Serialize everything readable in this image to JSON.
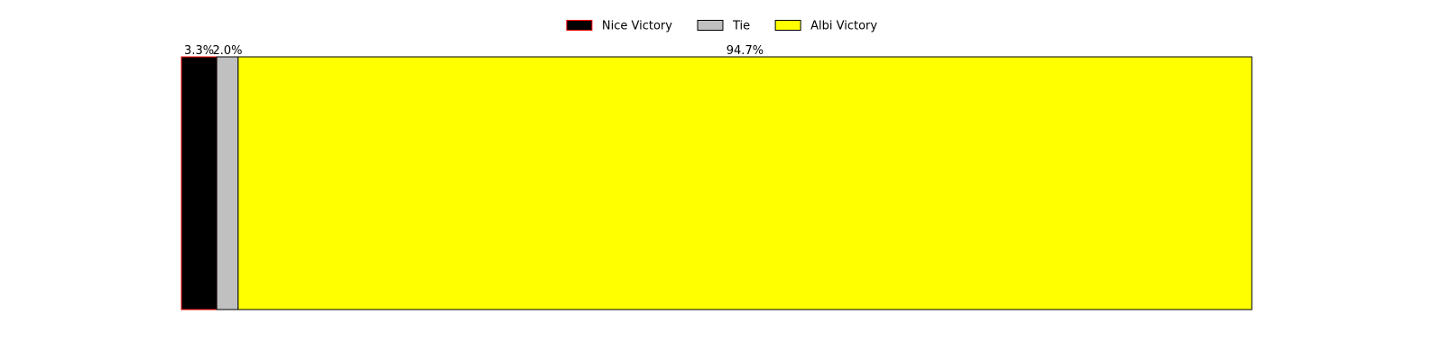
{
  "chart_data": {
    "type": "bar",
    "orientation": "horizontal-stacked",
    "title": "",
    "xlabel": "",
    "ylabel": "",
    "xlim": [
      0,
      100
    ],
    "unit": "%",
    "grid": false,
    "legend_position": "top-center",
    "series": [
      {
        "name": "Nice Victory",
        "value": 3.3,
        "label": "3.3%",
        "fill": "#000000",
        "edge": "#ff0000"
      },
      {
        "name": "Tie",
        "value": 2.0,
        "label": "2.0%",
        "fill": "#c0c0c0",
        "edge": "#000000"
      },
      {
        "name": "Albi Victory",
        "value": 94.7,
        "label": "94.7%",
        "fill": "#ffff00",
        "edge": "#000000"
      }
    ]
  }
}
